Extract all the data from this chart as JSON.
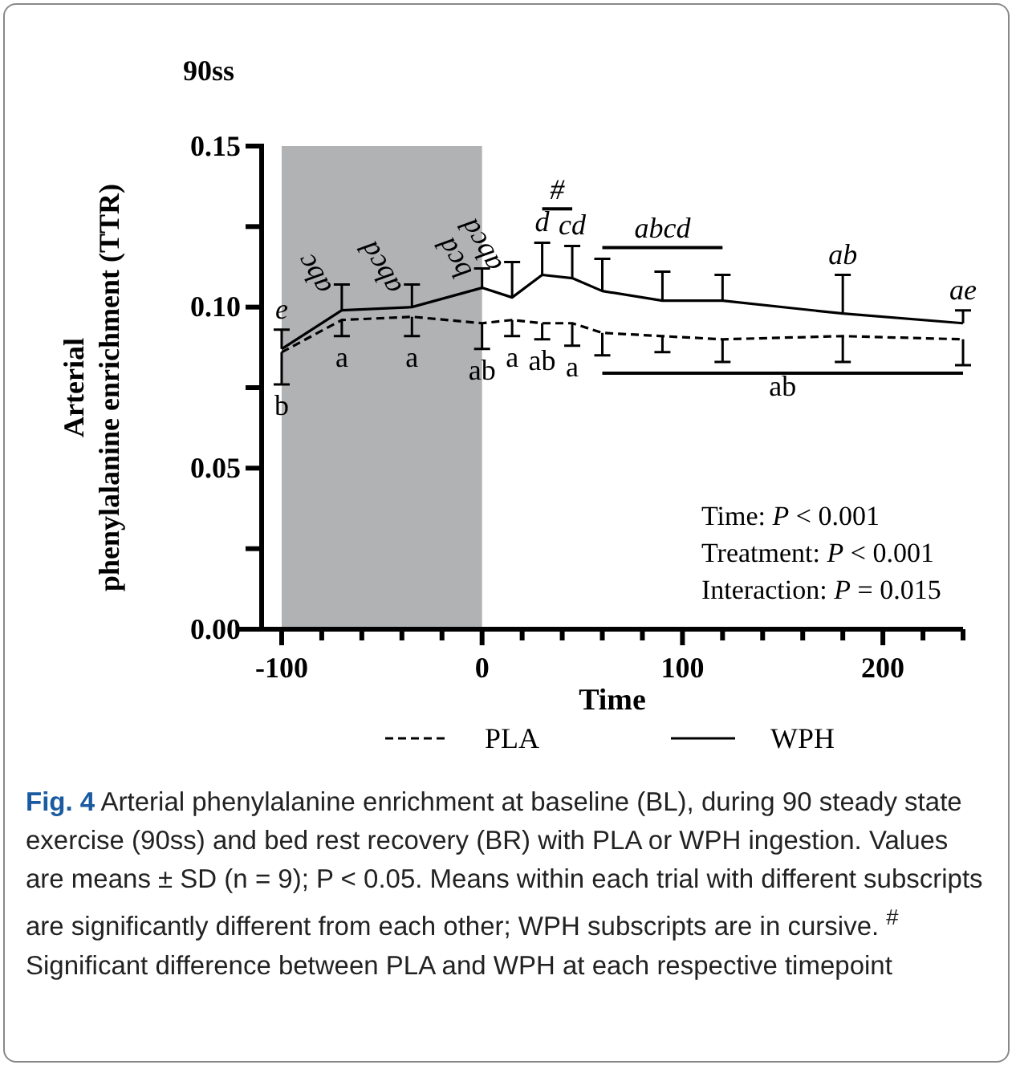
{
  "chart_data": {
    "type": "line",
    "title": "90ss",
    "xlabel": "Time",
    "ylabel": "Arterial phenylalanine enrichment (TTR)",
    "xlim": [
      -110,
      240
    ],
    "ylim": [
      0,
      0.15
    ],
    "xticks": [
      {
        "value": -100,
        "label": "-100"
      },
      {
        "value": -80,
        "label": null
      },
      {
        "value": -60,
        "label": null
      },
      {
        "value": -40,
        "label": null
      },
      {
        "value": -20,
        "label": null
      },
      0,
      {
        "value": 20,
        "label": null
      },
      {
        "value": 40,
        "label": null
      },
      {
        "value": 60,
        "label": null
      },
      {
        "value": 80,
        "label": null
      },
      100,
      {
        "value": 120,
        "label": null
      },
      {
        "value": 140,
        "label": null
      },
      {
        "value": 160,
        "label": null
      },
      {
        "value": 180,
        "label": null
      },
      200,
      {
        "value": 220,
        "label": null
      },
      {
        "value": 240,
        "label": null
      }
    ],
    "yticks": [
      {
        "value": 0,
        "label": "0.00"
      },
      {
        "value": 0.025,
        "label": null
      },
      {
        "value": 0.05,
        "label": "0.05"
      },
      {
        "value": 0.075,
        "label": null
      },
      {
        "value": 0.1,
        "label": "0.10"
      },
      {
        "value": 0.125,
        "label": null
      },
      {
        "value": 0.15,
        "label": "0.15"
      }
    ],
    "x": [
      -100,
      -70,
      -35,
      0,
      15,
      30,
      45,
      60,
      90,
      120,
      180,
      240
    ],
    "series": [
      {
        "name": "PLA",
        "color": "#000000",
        "line_style": "dashed",
        "values": [
          0.086,
          0.096,
          0.097,
          0.095,
          0.096,
          0.095,
          0.095,
          0.092,
          0.091,
          0.09,
          0.091,
          0.09
        ],
        "errors": [
          [
            0.076,
            0.086
          ],
          [
            0.091,
            0.096
          ],
          [
            0.091,
            0.097
          ],
          [
            0.087,
            0.095
          ],
          [
            0.091,
            0.096
          ],
          [
            0.09,
            0.095
          ],
          [
            0.088,
            0.095
          ],
          [
            0.085,
            0.092
          ],
          [
            0.086,
            0.091
          ],
          [
            0.083,
            0.09
          ],
          [
            0.083,
            0.091
          ],
          [
            0.082,
            0.09
          ]
        ]
      },
      {
        "name": "WPH",
        "color": "#000000",
        "line_style": "solid",
        "values": [
          0.087,
          0.099,
          0.1,
          0.106,
          0.103,
          0.11,
          0.109,
          0.105,
          0.102,
          0.102,
          0.098,
          0.095
        ],
        "errors": [
          [
            0.087,
            0.093
          ],
          [
            0.099,
            0.107
          ],
          [
            0.1,
            0.107
          ],
          [
            0.106,
            0.112
          ],
          [
            0.103,
            0.114
          ],
          [
            0.11,
            0.12
          ],
          [
            0.109,
            0.119
          ],
          [
            0.105,
            0.115
          ],
          [
            0.102,
            0.111
          ],
          [
            0.102,
            0.11
          ],
          [
            0.098,
            0.11
          ],
          [
            0.095,
            0.099
          ]
        ]
      }
    ],
    "bands": [
      {
        "axis": "x",
        "from": -100,
        "to": 0,
        "color": "#b1b2b4"
      }
    ],
    "legend": "bottom",
    "annotations": [
      {
        "text": "e",
        "x": -100,
        "y": 0.087
      },
      {
        "text": "b",
        "x": -100,
        "y": 0.086
      },
      {
        "text": "abc",
        "x": -70,
        "y": 0.099
      },
      {
        "text": "a",
        "x": -70,
        "y": 0.096
      },
      {
        "text": "abcd",
        "x": -35,
        "y": 0.1
      },
      {
        "text": "a",
        "x": -35,
        "y": 0.097
      },
      {
        "text": "bcd",
        "x": 0,
        "y": 0.106
      },
      {
        "text": "ab",
        "x": 0,
        "y": 0.095
      },
      {
        "text": "abcd",
        "x": 15,
        "y": 0.103
      },
      {
        "text": "a",
        "x": 15,
        "y": 0.096
      },
      {
        "text": "d",
        "x": 30,
        "y": 0.11
      },
      {
        "text": "ab",
        "x": 30,
        "y": 0.095
      },
      {
        "text": "cd",
        "x": 45,
        "y": 0.109
      },
      {
        "text": "a",
        "x": 45,
        "y": 0.095
      },
      {
        "text": "ab",
        "x": 180,
        "y": 0.098
      },
      {
        "text": "ae",
        "x": 240,
        "y": 0.095
      },
      "#",
      "abcd",
      "ab",
      "Time: P < 0.001",
      "Treatment: P < 0.001",
      "Interaction: P = 0.015",
      "Fig. 4 Arterial phenylalanine enrichment at baseline (BL), during 90 steady state exercise (90ss) and bed rest recovery (BR) with PLA or WPH ingestion. Values are means ± SD (n = 9); P < 0.05. Means within each trial with different subscripts are significantly different from each other; WPH subscripts are in cursive. $^{#}$ Significant difference between PLA and WPH at each respective timepoint"
    ]
  }
}
